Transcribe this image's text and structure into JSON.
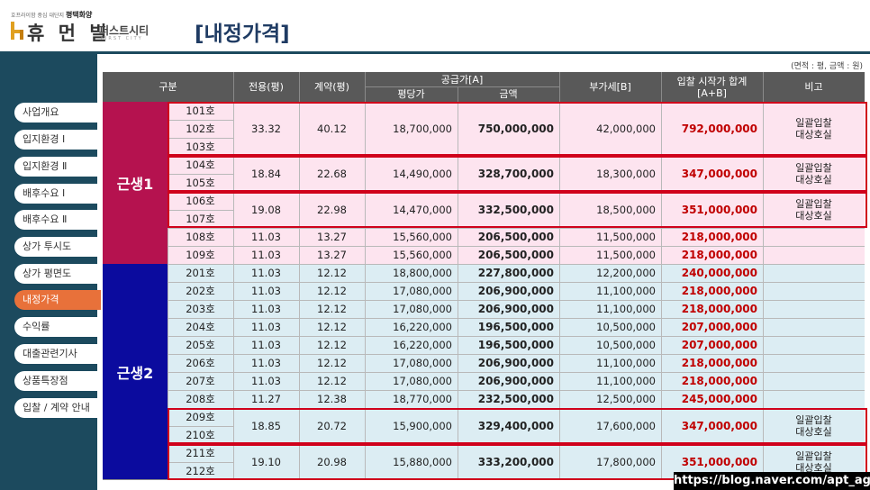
{
  "header": {
    "logo_sub": "호프라이함 중심 대단지",
    "logo_sub_bold": "평택화양",
    "logo_main": "휴 먼 빌",
    "logo_sub2": "퍼스트시티",
    "logo_sub3": "FIRST CITY",
    "page_title": "[내정가격]"
  },
  "sidebar": {
    "items": [
      {
        "label": "사업개요",
        "active": false
      },
      {
        "label": "입지환경 Ⅰ",
        "active": false
      },
      {
        "label": "입지환경 Ⅱ",
        "active": false
      },
      {
        "label": "배후수요 Ⅰ",
        "active": false
      },
      {
        "label": "배후수요 Ⅱ",
        "active": false
      },
      {
        "label": "상가 투시도",
        "active": false
      },
      {
        "label": "상가 평면도",
        "active": false
      },
      {
        "label": "내정가격",
        "active": true
      },
      {
        "label": "수익률",
        "active": false
      },
      {
        "label": "대출관련기사",
        "active": false
      },
      {
        "label": "상품특장점",
        "active": false
      },
      {
        "label": "입찰 / 계약 안내",
        "active": false
      }
    ]
  },
  "table": {
    "unit_note": "(면적 : 평, 금액 : 원)",
    "headers": {
      "category": "구분",
      "exclusive": "전용(평)",
      "contract": "계약(평)",
      "supply": "공급가[A]",
      "per_pyeong": "평당가",
      "amount": "금액",
      "vat": "부가세[B]",
      "total": "입찰 시작가 합계\n[A+B]",
      "note": "비고"
    },
    "groups": [
      {
        "name": "근생1",
        "color": "#b5124f",
        "bg": "#fde4ef"
      },
      {
        "name": "근생2",
        "color": "#0b0b9e",
        "bg": "#dcedf3"
      }
    ],
    "units": [
      "101호",
      "102호",
      "103호",
      "104호",
      "105호",
      "106호",
      "107호",
      "108호",
      "109호",
      "201호",
      "202호",
      "203호",
      "204호",
      "205호",
      "206호",
      "207호",
      "208호",
      "209호",
      "210호",
      "211호",
      "212호"
    ],
    "blocks": [
      {
        "exclusive": "33.32",
        "contract": "40.12",
        "per_pyeong": "18,700,000",
        "amount": "750,000,000",
        "vat": "42,000,000",
        "total": "792,000,000",
        "note": "일괄입찰\n대상호실"
      },
      {
        "exclusive": "18.84",
        "contract": "22.68",
        "per_pyeong": "14,490,000",
        "amount": "328,700,000",
        "vat": "18,300,000",
        "total": "347,000,000",
        "note": "일괄입찰\n대상호실"
      },
      {
        "exclusive": "19.08",
        "contract": "22.98",
        "per_pyeong": "14,470,000",
        "amount": "332,500,000",
        "vat": "18,500,000",
        "total": "351,000,000",
        "note": "일괄입찰\n대상호실"
      },
      {
        "exclusive": "11.03",
        "contract": "13.27",
        "per_pyeong": "15,560,000",
        "amount": "206,500,000",
        "vat": "11,500,000",
        "total": "218,000,000",
        "note": ""
      },
      {
        "exclusive": "11.03",
        "contract": "13.27",
        "per_pyeong": "15,560,000",
        "amount": "206,500,000",
        "vat": "11,500,000",
        "total": "218,000,000",
        "note": ""
      },
      {
        "exclusive": "11.03",
        "contract": "12.12",
        "per_pyeong": "18,800,000",
        "amount": "227,800,000",
        "vat": "12,200,000",
        "total": "240,000,000",
        "note": ""
      },
      {
        "exclusive": "11.03",
        "contract": "12.12",
        "per_pyeong": "17,080,000",
        "amount": "206,900,000",
        "vat": "11,100,000",
        "total": "218,000,000",
        "note": ""
      },
      {
        "exclusive": "11.03",
        "contract": "12.12",
        "per_pyeong": "17,080,000",
        "amount": "206,900,000",
        "vat": "11,100,000",
        "total": "218,000,000",
        "note": ""
      },
      {
        "exclusive": "11.03",
        "contract": "12.12",
        "per_pyeong": "16,220,000",
        "amount": "196,500,000",
        "vat": "10,500,000",
        "total": "207,000,000",
        "note": ""
      },
      {
        "exclusive": "11.03",
        "contract": "12.12",
        "per_pyeong": "16,220,000",
        "amount": "196,500,000",
        "vat": "10,500,000",
        "total": "207,000,000",
        "note": ""
      },
      {
        "exclusive": "11.03",
        "contract": "12.12",
        "per_pyeong": "17,080,000",
        "amount": "206,900,000",
        "vat": "11,100,000",
        "total": "218,000,000",
        "note": ""
      },
      {
        "exclusive": "11.03",
        "contract": "12.12",
        "per_pyeong": "17,080,000",
        "amount": "206,900,000",
        "vat": "11,100,000",
        "total": "218,000,000",
        "note": ""
      },
      {
        "exclusive": "11.27",
        "contract": "12.38",
        "per_pyeong": "18,770,000",
        "amount": "232,500,000",
        "vat": "12,500,000",
        "total": "245,000,000",
        "note": ""
      },
      {
        "exclusive": "18.85",
        "contract": "20.72",
        "per_pyeong": "15,900,000",
        "amount": "329,400,000",
        "vat": "17,600,000",
        "total": "347,000,000",
        "note": "일괄입찰\n대상호실"
      },
      {
        "exclusive": "19.10",
        "contract": "20.98",
        "per_pyeong": "15,880,000",
        "amount": "333,200,000",
        "vat": "17,800,000",
        "total": "351,000,000",
        "note": "일괄입찰\n대상호실"
      }
    ]
  },
  "watermark": "https://blog.naver.com/apt_agent",
  "colors": {
    "sidebar_bg": "#1c4a5e",
    "active_tab": "#e8713a",
    "title": "#1f3b63",
    "header_gray": "#595959",
    "highlight_border": "#d0021b",
    "total_red": "#c00000"
  }
}
